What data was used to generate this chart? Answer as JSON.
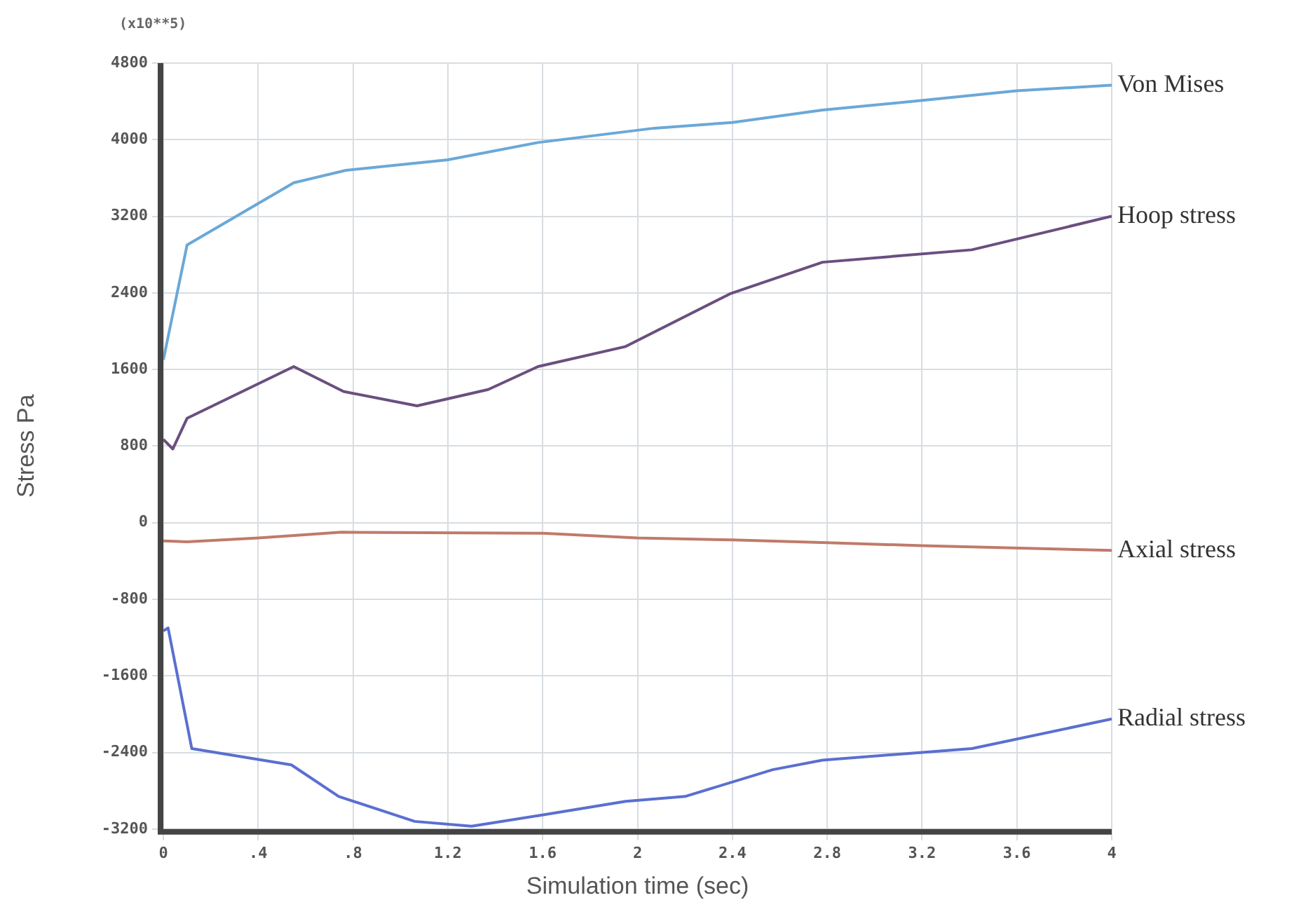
{
  "chart_data": {
    "type": "line",
    "xlabel": "Simulation time (sec)",
    "ylabel": "Stress Pa",
    "annotations": [
      "(x10**5)"
    ],
    "xlim": [
      0,
      4
    ],
    "xticks": [
      0,
      {
        "value": 0.4,
        "label": ".4"
      },
      {
        "value": 0.8,
        "label": ".8"
      },
      1.2,
      1.6,
      2,
      2.4,
      2.8,
      3.2,
      3.6,
      4
    ],
    "ylim": [
      -3200,
      4800
    ],
    "yticks": [
      -3200,
      -2400,
      -1600,
      -800,
      0,
      800,
      1600,
      2400,
      3200,
      4000,
      4800
    ],
    "grid": true,
    "legend": false,
    "marker": "none",
    "line_style": "solid",
    "series": [
      {
        "name": "Von Mises",
        "color": "#6aa8d8",
        "x": [
          0,
          0.1,
          0.55,
          0.77,
          1.2,
          1.58,
          2.07,
          2.4,
          2.78,
          3.2,
          3.6,
          4
        ],
        "values": [
          1700,
          2900,
          3550,
          3680,
          3790,
          3970,
          4120,
          4180,
          4310,
          4410,
          4510,
          4570
        ]
      },
      {
        "name": "Hoop stress",
        "color": "#6a4f7f",
        "x": [
          0,
          0.04,
          0.1,
          0.55,
          0.76,
          1.07,
          1.37,
          1.58,
          1.95,
          2.39,
          2.78,
          3.41,
          4
        ],
        "values": [
          870,
          770,
          1090,
          1630,
          1370,
          1220,
          1390,
          1630,
          1840,
          2390,
          2720,
          2850,
          3200
        ]
      },
      {
        "name": "Axial stress",
        "color": "#c07a6a",
        "x": [
          0,
          0.1,
          0.4,
          0.75,
          1.6,
          2,
          2.4,
          2.8,
          3.2,
          4
        ],
        "values": [
          -190,
          -200,
          -160,
          -100,
          -110,
          -160,
          -180,
          -210,
          -240,
          -290
        ]
      },
      {
        "name": "Radial stress",
        "color": "#5a6fd0",
        "x": [
          0,
          0.02,
          0.12,
          0.54,
          0.74,
          1.06,
          1.3,
          1.58,
          1.95,
          2.2,
          2.57,
          2.78,
          3.41,
          4
        ],
        "values": [
          -1130,
          -1100,
          -2360,
          -2530,
          -2860,
          -3120,
          -3170,
          -3060,
          -2910,
          -2860,
          -2580,
          -2480,
          -2360,
          -2050
        ]
      }
    ]
  }
}
